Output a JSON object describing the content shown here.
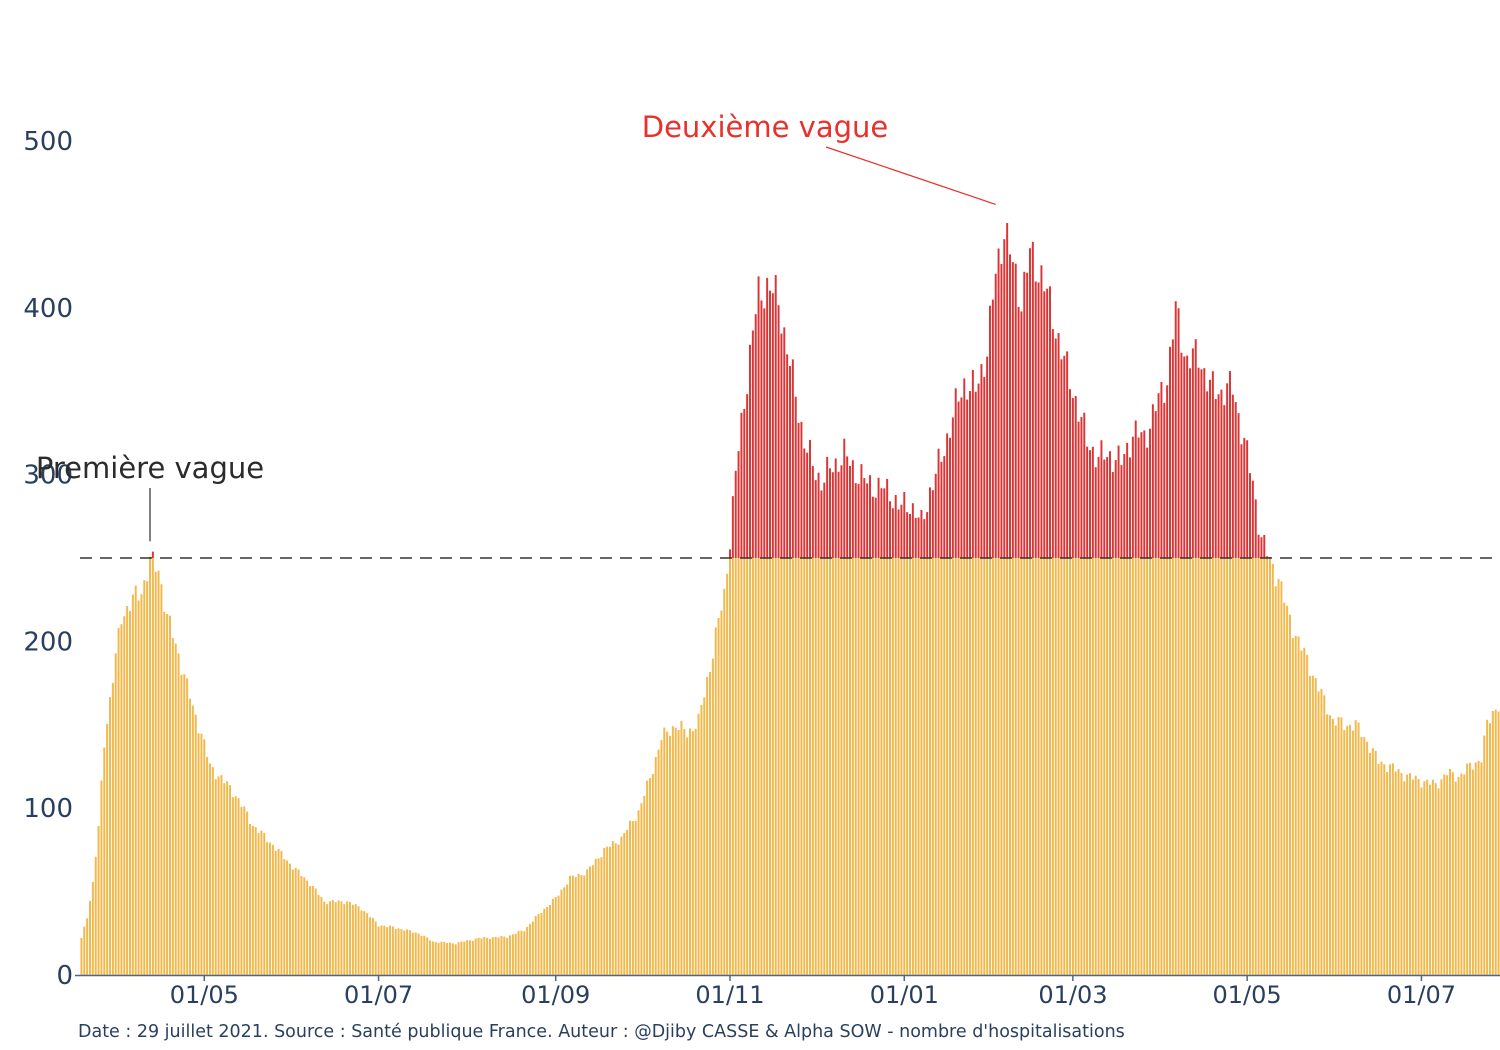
{
  "chart_data": {
    "type": "bar",
    "stacked": true,
    "x_start": "2020-03-19",
    "x_end": "2021-07-28",
    "x_ticks": [
      {
        "date": "2020-05-01",
        "label": "01/05"
      },
      {
        "date": "2020-07-01",
        "label": "01/07"
      },
      {
        "date": "2020-09-01",
        "label": "01/09"
      },
      {
        "date": "2020-11-01",
        "label": "01/11"
      },
      {
        "date": "2021-01-01",
        "label": "01/01"
      },
      {
        "date": "2021-03-01",
        "label": "01/03"
      },
      {
        "date": "2021-05-01",
        "label": "01/05"
      },
      {
        "date": "2021-07-01",
        "label": "01/07"
      }
    ],
    "ylim": [
      0,
      560
    ],
    "y_ticks": [
      0,
      100,
      200,
      300,
      400,
      500
    ],
    "threshold": 250,
    "colors": {
      "below": "#f2b84b",
      "above": "#dc3535",
      "threshold_line": "#333333",
      "axis_text": "#2a3f5f"
    },
    "keypoints": [
      [
        "2020-03-19",
        22
      ],
      [
        "2020-03-21",
        35
      ],
      [
        "2020-03-23",
        55
      ],
      [
        "2020-03-25",
        88
      ],
      [
        "2020-03-27",
        140
      ],
      [
        "2020-03-29",
        165
      ],
      [
        "2020-03-31",
        190
      ],
      [
        "2020-04-02",
        215
      ],
      [
        "2020-04-06",
        225
      ],
      [
        "2020-04-09",
        230
      ],
      [
        "2020-04-12",
        248
      ],
      [
        "2020-04-15",
        243
      ],
      [
        "2020-04-18",
        215
      ],
      [
        "2020-04-21",
        198
      ],
      [
        "2020-04-24",
        180
      ],
      [
        "2020-04-27",
        160
      ],
      [
        "2020-04-30",
        145
      ],
      [
        "2020-05-03",
        125
      ],
      [
        "2020-05-07",
        118
      ],
      [
        "2020-05-12",
        108
      ],
      [
        "2020-05-18",
        90
      ],
      [
        "2020-05-25",
        78
      ],
      [
        "2020-06-01",
        65
      ],
      [
        "2020-06-07",
        55
      ],
      [
        "2020-06-12",
        44
      ],
      [
        "2020-06-20",
        44
      ],
      [
        "2020-06-25",
        40
      ],
      [
        "2020-07-01",
        30
      ],
      [
        "2020-07-08",
        28
      ],
      [
        "2020-07-15",
        25
      ],
      [
        "2020-07-20",
        20
      ],
      [
        "2020-07-28",
        19
      ],
      [
        "2020-08-05",
        22
      ],
      [
        "2020-08-15",
        23
      ],
      [
        "2020-08-21",
        27
      ],
      [
        "2020-08-27",
        38
      ],
      [
        "2020-09-01",
        46
      ],
      [
        "2020-09-06",
        58
      ],
      [
        "2020-09-12",
        62
      ],
      [
        "2020-09-18",
        75
      ],
      [
        "2020-09-24",
        82
      ],
      [
        "2020-09-30",
        98
      ],
      [
        "2020-10-04",
        118
      ],
      [
        "2020-10-08",
        142
      ],
      [
        "2020-10-13",
        150
      ],
      [
        "2020-10-17",
        145
      ],
      [
        "2020-10-21",
        152
      ],
      [
        "2020-10-25",
        185
      ],
      [
        "2020-10-28",
        212
      ],
      [
        "2020-10-30",
        228
      ],
      [
        "2020-11-01",
        262
      ],
      [
        "2020-11-03",
        300
      ],
      [
        "2020-11-06",
        345
      ],
      [
        "2020-11-09",
        385
      ],
      [
        "2020-11-11",
        408
      ],
      [
        "2020-11-14",
        413
      ],
      [
        "2020-11-18",
        405
      ],
      [
        "2020-11-21",
        375
      ],
      [
        "2020-11-24",
        348
      ],
      [
        "2020-11-27",
        320
      ],
      [
        "2020-11-30",
        305
      ],
      [
        "2020-12-03",
        296
      ],
      [
        "2020-12-07",
        305
      ],
      [
        "2020-12-11",
        312
      ],
      [
        "2020-12-15",
        302
      ],
      [
        "2020-12-19",
        295
      ],
      [
        "2020-12-23",
        292
      ],
      [
        "2020-12-27",
        290
      ],
      [
        "2020-12-30",
        280
      ],
      [
        "2021-01-03",
        283
      ],
      [
        "2021-01-07",
        270
      ],
      [
        "2021-01-10",
        290
      ],
      [
        "2021-01-14",
        310
      ],
      [
        "2021-01-18",
        335
      ],
      [
        "2021-01-22",
        355
      ],
      [
        "2021-01-26",
        350
      ],
      [
        "2021-01-30",
        375
      ],
      [
        "2021-02-02",
        420
      ],
      [
        "2021-02-05",
        448
      ],
      [
        "2021-02-08",
        425
      ],
      [
        "2021-02-11",
        405
      ],
      [
        "2021-02-14",
        432
      ],
      [
        "2021-02-18",
        420
      ],
      [
        "2021-02-22",
        395
      ],
      [
        "2021-02-26",
        368
      ],
      [
        "2021-03-02",
        345
      ],
      [
        "2021-03-06",
        320
      ],
      [
        "2021-03-10",
        310
      ],
      [
        "2021-03-14",
        312
      ],
      [
        "2021-03-18",
        307
      ],
      [
        "2021-03-22",
        325
      ],
      [
        "2021-03-26",
        322
      ],
      [
        "2021-03-30",
        340
      ],
      [
        "2021-04-03",
        358
      ],
      [
        "2021-04-06",
        398
      ],
      [
        "2021-04-10",
        368
      ],
      [
        "2021-04-14",
        372
      ],
      [
        "2021-04-18",
        352
      ],
      [
        "2021-04-22",
        350
      ],
      [
        "2021-04-26",
        352
      ],
      [
        "2021-04-30",
        320
      ],
      [
        "2021-05-03",
        295
      ],
      [
        "2021-05-06",
        262
      ],
      [
        "2021-05-09",
        248
      ],
      [
        "2021-05-12",
        238
      ],
      [
        "2021-05-15",
        218
      ],
      [
        "2021-05-19",
        200
      ],
      [
        "2021-05-23",
        185
      ],
      [
        "2021-05-27",
        168
      ],
      [
        "2021-05-31",
        153
      ],
      [
        "2021-06-04",
        150
      ],
      [
        "2021-06-08",
        150
      ],
      [
        "2021-06-12",
        140
      ],
      [
        "2021-06-16",
        128
      ],
      [
        "2021-06-20",
        125
      ],
      [
        "2021-06-24",
        121
      ],
      [
        "2021-06-28",
        118
      ],
      [
        "2021-07-02",
        116
      ],
      [
        "2021-07-06",
        114
      ],
      [
        "2021-07-10",
        121
      ],
      [
        "2021-07-14",
        119
      ],
      [
        "2021-07-18",
        125
      ],
      [
        "2021-07-22",
        130
      ],
      [
        "2021-07-24",
        150
      ],
      [
        "2021-07-26",
        158
      ],
      [
        "2021-07-28",
        162
      ]
    ],
    "annotations": [
      {
        "text": "Deuxième vague",
        "date": "2021-02-02",
        "value": 462,
        "color": "#e8302c"
      },
      {
        "text": "Première vague",
        "date": "2020-04-12",
        "value": 260,
        "color": "#2b2b2b"
      }
    ]
  },
  "footer": "Date : 29 juillet 2021. Source : Santé publique France. Auteur : @Djiby CASSE & Alpha SOW - nombre d'hospitalisations"
}
